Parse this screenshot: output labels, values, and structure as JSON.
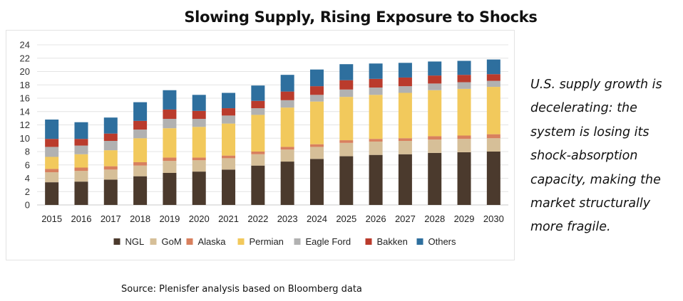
{
  "title": "Slowing Supply, Rising Exposure to Shocks",
  "side_text": "U.S. supply growth is\ndecelerating: the\nsystem is losing its\nshock-absorption\ncapacity, making the\nmarket structurally\nmore fragile.",
  "source": "Source: Plenisfer analysis based on Bloomberg data",
  "chart_data": {
    "type": "bar",
    "stacked": true,
    "title": "",
    "xlabel": "",
    "ylabel": "",
    "ylim": [
      0,
      24
    ],
    "yticks": [
      0,
      2,
      4,
      6,
      8,
      10,
      12,
      14,
      16,
      18,
      20,
      22,
      24
    ],
    "grid": true,
    "legend_position": "bottom",
    "categories": [
      "2015",
      "2016",
      "2017",
      "2018",
      "2019",
      "2020",
      "2021",
      "2022",
      "2023",
      "2024",
      "2025",
      "2026",
      "2027",
      "2028",
      "2029",
      "2030"
    ],
    "series": [
      {
        "name": "NGL",
        "color": "#4b3a2d",
        "values": [
          3.4,
          3.5,
          3.8,
          4.3,
          4.8,
          5.0,
          5.3,
          5.9,
          6.5,
          6.9,
          7.3,
          7.5,
          7.6,
          7.8,
          7.9,
          8.0
        ]
      },
      {
        "name": "GoM",
        "color": "#d6bf98",
        "values": [
          1.5,
          1.6,
          1.5,
          1.6,
          1.8,
          1.7,
          1.7,
          1.7,
          1.8,
          1.8,
          2.0,
          2.0,
          2.0,
          2.0,
          2.0,
          2.0
        ]
      },
      {
        "name": "Alaska",
        "color": "#d8805e",
        "values": [
          0.5,
          0.5,
          0.5,
          0.5,
          0.5,
          0.4,
          0.4,
          0.4,
          0.4,
          0.4,
          0.4,
          0.4,
          0.4,
          0.5,
          0.5,
          0.6
        ]
      },
      {
        "name": "Permian",
        "color": "#f2c95c",
        "values": [
          1.8,
          2.0,
          2.4,
          3.6,
          4.4,
          4.6,
          4.8,
          5.5,
          5.9,
          6.4,
          6.5,
          6.6,
          6.8,
          6.9,
          7.0,
          7.1
        ]
      },
      {
        "name": "Eagle Ford",
        "color": "#b1b1b1",
        "values": [
          1.5,
          1.3,
          1.4,
          1.3,
          1.4,
          1.2,
          1.2,
          1.0,
          1.1,
          1.0,
          1.1,
          1.1,
          1.0,
          1.0,
          1.0,
          0.9
        ]
      },
      {
        "name": "Bakken",
        "color": "#ba3b2c",
        "values": [
          1.2,
          1.0,
          1.1,
          1.3,
          1.4,
          1.2,
          1.1,
          1.1,
          1.3,
          1.3,
          1.4,
          1.3,
          1.3,
          1.2,
          1.1,
          1.0
        ]
      },
      {
        "name": "Others",
        "color": "#2e6f9e",
        "values": [
          2.9,
          2.5,
          2.4,
          2.8,
          2.9,
          2.4,
          2.3,
          2.3,
          2.5,
          2.5,
          2.4,
          2.3,
          2.2,
          2.1,
          2.1,
          2.2
        ]
      }
    ]
  }
}
